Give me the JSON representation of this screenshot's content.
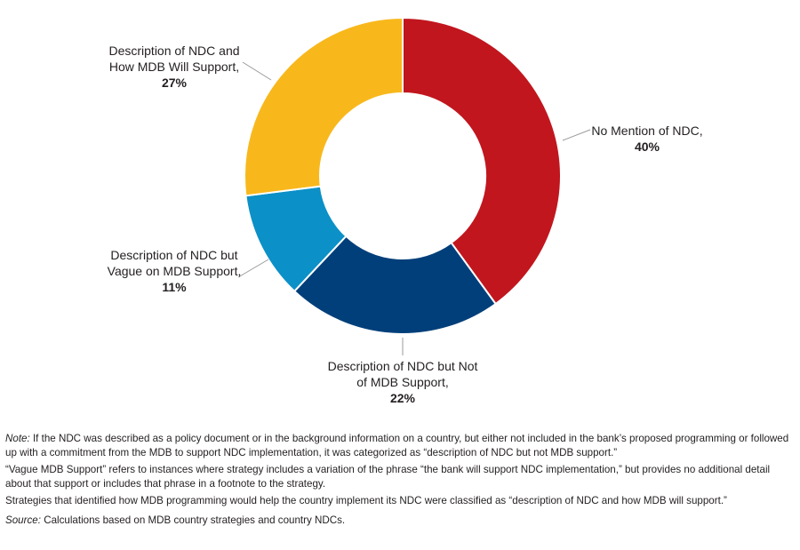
{
  "chart_data": {
    "type": "pie",
    "donut": true,
    "title": "",
    "slices": [
      {
        "label_lines": [
          "No Mention of NDC,"
        ],
        "value": 40,
        "value_label": "40%",
        "color": "#c1161e"
      },
      {
        "label_lines": [
          "Description of NDC but Not",
          "of MDB Support,"
        ],
        "value": 22,
        "value_label": "22%",
        "color": "#003f7a"
      },
      {
        "label_lines": [
          "Description of NDC but",
          "Vague on MDB Support,"
        ],
        "value": 11,
        "value_label": "11%",
        "color": "#0b90c7"
      },
      {
        "label_lines": [
          "Description of NDC and",
          "How MDB Will Support,"
        ],
        "value": 27,
        "value_label": "27%",
        "color": "#f8b81c"
      }
    ]
  },
  "notes": {
    "note_label": "Note:",
    "note_text": " If the NDC was described as a policy document or in the background information on a country, but either not included in the bank’s proposed programming or followed up with a commitment from the MDB to support NDC implementation, it was categorized as “description of NDC but not MDB support.”",
    "vague_text": "“Vague MDB Support” refers to instances where strategy includes a variation of the phrase “the bank will support NDC implementation,” but provides no additional detail about that support or includes that phrase in a footnote to the strategy.",
    "strategies_text": "Strategies that identified how MDB programming would help the country implement its NDC were classified as “description of NDC and how MDB will support.”",
    "source_label": "Source:",
    "source_text": " Calculations based on MDB country strategies and country NDCs."
  }
}
